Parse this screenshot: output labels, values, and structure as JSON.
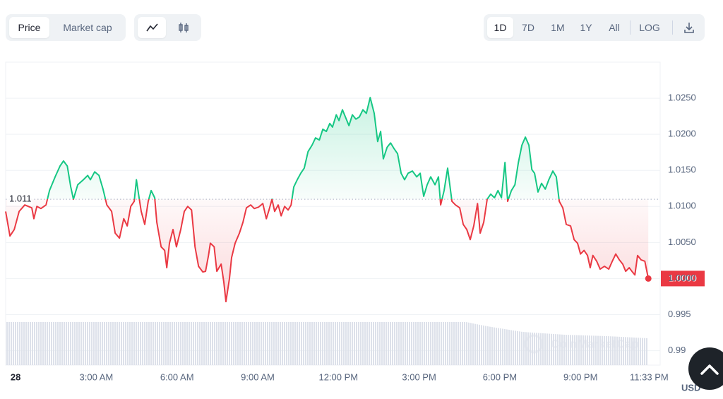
{
  "controls": {
    "metric_tabs": [
      "Price",
      "Market cap"
    ],
    "ranges": [
      "1D",
      "7D",
      "1M",
      "1Y",
      "All"
    ],
    "log_button": "LOG"
  },
  "watermark": "CoinMarketCap",
  "chart_data": {
    "type": "line",
    "y_unit": "USD",
    "baseline": 1.011,
    "up_color": "#16c784",
    "down_color": "#ea3943",
    "last_price": {
      "value": 1.0,
      "label": "1.0000"
    },
    "grid": true,
    "xlim": [
      -0.37,
      23.96
    ],
    "ylim": [
      0.988,
      1.03
    ],
    "xticks": [
      {
        "value": 0,
        "label": "28"
      },
      {
        "value": 3,
        "label": "3:00 AM"
      },
      {
        "value": 6,
        "label": "6:00 AM"
      },
      {
        "value": 9,
        "label": "9:00 AM"
      },
      {
        "value": 12,
        "label": "12:00 PM"
      },
      {
        "value": 15,
        "label": "3:00 PM"
      },
      {
        "value": 18,
        "label": "6:00 PM"
      },
      {
        "value": 21,
        "label": "9:00 PM"
      },
      {
        "value": 23.55,
        "label": "11:33 PM"
      }
    ],
    "yticks": [
      0.99,
      0.995,
      {
        "value": 1.0,
        "label": "1.0000"
      },
      {
        "value": 1.005,
        "label": "1.0050"
      },
      {
        "value": 1.01,
        "label": "1.0100"
      },
      {
        "value": 1.015,
        "label": "1.0150"
      },
      {
        "value": 1.02,
        "label": "1.0200"
      },
      {
        "value": 1.025,
        "label": "1.0250"
      }
    ],
    "x": [
      -0.37,
      -0.21,
      -0.05,
      0.13,
      0.34,
      0.6,
      0.68,
      0.79,
      0.94,
      1.13,
      1.26,
      1.47,
      1.65,
      1.78,
      1.92,
      2.05,
      2.15,
      2.31,
      2.52,
      2.68,
      2.78,
      2.94,
      3.1,
      3.25,
      3.39,
      3.57,
      3.7,
      3.86,
      4.02,
      4.15,
      4.28,
      4.41,
      4.49,
      4.59,
      4.67,
      4.8,
      4.93,
      5.04,
      5.17,
      5.25,
      5.41,
      5.54,
      5.62,
      5.72,
      5.85,
      5.98,
      6.14,
      6.27,
      6.4,
      6.54,
      6.67,
      6.8,
      6.96,
      7.06,
      7.17,
      7.24,
      7.38,
      7.48,
      7.64,
      7.74,
      7.82,
      7.95,
      8.03,
      8.16,
      8.32,
      8.45,
      8.58,
      8.74,
      8.87,
      9.03,
      9.19,
      9.32,
      9.42,
      9.53,
      9.63,
      9.76,
      9.87,
      10.0,
      10.13,
      10.24,
      10.34,
      10.47,
      10.6,
      10.73,
      10.87,
      11.02,
      11.15,
      11.29,
      11.42,
      11.55,
      11.68,
      11.78,
      11.92,
      12.02,
      12.15,
      12.26,
      12.39,
      12.52,
      12.65,
      12.78,
      12.91,
      13.04,
      13.18,
      13.33,
      13.46,
      13.57,
      13.67,
      13.81,
      13.94,
      14.07,
      14.2,
      14.33,
      14.46,
      14.59,
      14.75,
      14.91,
      15.04,
      15.17,
      15.3,
      15.43,
      15.59,
      15.72,
      15.8,
      15.93,
      16.06,
      16.22,
      16.35,
      16.51,
      16.64,
      16.77,
      16.9,
      17.03,
      17.17,
      17.27,
      17.4,
      17.53,
      17.66,
      17.8,
      17.93,
      18.06,
      18.19,
      18.29,
      18.43,
      18.56,
      18.69,
      18.82,
      18.95,
      19.08,
      19.19,
      19.29,
      19.42,
      19.55,
      19.69,
      19.82,
      19.97,
      20.1,
      20.21,
      20.34,
      20.47,
      20.63,
      20.76,
      20.89,
      21.0,
      21.13,
      21.26,
      21.36,
      21.46,
      21.6,
      21.73,
      21.89,
      22.05,
      22.18,
      22.31,
      22.44,
      22.57,
      22.68,
      22.81,
      22.91,
      23.02,
      23.12,
      23.25,
      23.39,
      23.52
    ],
    "series": [
      {
        "name": "Price",
        "values": [
          1.0093,
          1.0059,
          1.0068,
          1.0093,
          1.0102,
          1.0098,
          1.0083,
          1.01,
          1.0097,
          1.0102,
          1.0122,
          1.0141,
          1.0156,
          1.0163,
          1.0156,
          1.0127,
          1.011,
          1.013,
          1.0137,
          1.0143,
          1.0137,
          1.0148,
          1.0143,
          1.0124,
          1.0102,
          1.0093,
          1.0063,
          1.0056,
          1.0083,
          1.0073,
          1.01,
          1.0107,
          1.0137,
          1.0112,
          1.0093,
          1.0075,
          1.0107,
          1.0122,
          1.0112,
          1.0078,
          1.0044,
          1.0039,
          1.0015,
          1.0049,
          1.0068,
          1.0044,
          1.0068,
          1.0093,
          1.01,
          1.0095,
          1.0044,
          1.0017,
          1.0009,
          1.001,
          1.0032,
          1.0049,
          1.0044,
          1.001,
          1.002,
          0.9995,
          0.9968,
          1.0,
          1.0029,
          1.0049,
          1.0063,
          1.0078,
          1.0098,
          1.0102,
          1.0097,
          1.0099,
          1.0104,
          1.0083,
          1.0095,
          1.011,
          1.0093,
          1.0102,
          1.0087,
          1.01,
          1.0095,
          1.0102,
          1.0127,
          1.0137,
          1.0146,
          1.0153,
          1.0176,
          1.0185,
          1.0195,
          1.0192,
          1.0207,
          1.0204,
          1.0215,
          1.021,
          1.0227,
          1.0219,
          1.0234,
          1.0224,
          1.0212,
          1.0227,
          1.0221,
          1.0224,
          1.0234,
          1.0229,
          1.0251,
          1.0229,
          1.019,
          1.0204,
          1.0166,
          1.0182,
          1.0188,
          1.018,
          1.0173,
          1.0146,
          1.0137,
          1.0146,
          1.0149,
          1.0141,
          1.0146,
          1.0114,
          1.013,
          1.0141,
          1.013,
          1.0141,
          1.0102,
          1.0122,
          1.0153,
          1.0107,
          1.0102,
          1.0098,
          1.0075,
          1.0068,
          1.0054,
          1.0073,
          1.0104,
          1.0063,
          1.0078,
          1.011,
          1.0117,
          1.0112,
          1.0122,
          1.0112,
          1.0161,
          1.0107,
          1.0122,
          1.013,
          1.0161,
          1.0185,
          1.0196,
          1.0185,
          1.0151,
          1.0146,
          1.012,
          1.0132,
          1.0124,
          1.0137,
          1.0149,
          1.0141,
          1.0107,
          1.0098,
          1.0075,
          1.0073,
          1.0054,
          1.0049,
          1.0034,
          1.0039,
          1.0032,
          1.0015,
          1.0032,
          1.0024,
          1.0013,
          1.0017,
          1.0013,
          1.0024,
          1.0034,
          1.0026,
          1.002,
          1.001,
          1.0015,
          1.001,
          1.0005,
          1.0032,
          1.0026,
          1.0024,
          1.0
        ]
      }
    ]
  }
}
